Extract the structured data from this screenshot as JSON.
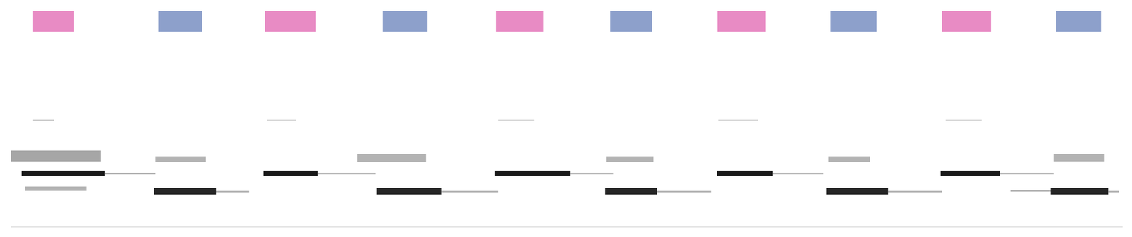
{
  "chart_data": {
    "type": "spectrogram",
    "tick_labels": false,
    "xlim": [
      0,
      1568
    ],
    "ylim": [
      0,
      329
    ],
    "intensity_range": [
      0,
      1
    ],
    "segments": {
      "x_start": [
        45,
        220,
        367,
        530,
        687,
        845,
        994,
        1150,
        1305,
        1463
      ],
      "x_end": [
        102,
        280,
        437,
        592,
        753,
        903,
        1060,
        1214,
        1373,
        1525
      ],
      "y_range": [
        285,
        314
      ],
      "colors": [
        "#e88bc4",
        "#8da0cb",
        "#e88bc4",
        "#8da0cb",
        "#e88bc4",
        "#8da0cb",
        "#e88bc4",
        "#8da0cb",
        "#e88bc4",
        "#8da0cb"
      ]
    },
    "notes": {
      "x_start": [
        15,
        30,
        145,
        15,
        35,
        45,
        213,
        300,
        215,
        365,
        440,
        370,
        522,
        612,
        495,
        685,
        790,
        690,
        838,
        910,
        840,
        993,
        1070,
        995,
        1145,
        1230,
        1148,
        1303,
        1385,
        1310,
        1400,
        1455,
        1535,
        1460
      ],
      "x_end": [
        1555,
        145,
        215,
        140,
        120,
        75,
        300,
        345,
        285,
        440,
        520,
        410,
        612,
        690,
        590,
        790,
        850,
        740,
        910,
        985,
        905,
        1070,
        1140,
        1050,
        1230,
        1305,
        1205,
        1385,
        1460,
        1360,
        1460,
        1535,
        1550,
        1530
      ],
      "y_low": [
        13,
        85,
        87,
        105,
        64,
        161,
        59,
        62,
        104,
        85,
        87,
        161,
        59,
        62,
        104,
        85,
        87,
        161,
        59,
        62,
        104,
        85,
        87,
        161,
        59,
        62,
        104,
        85,
        87,
        161,
        63,
        59,
        62,
        105
      ],
      "y_high": [
        15,
        92,
        89,
        120,
        70,
        163,
        68,
        64,
        112,
        92,
        89,
        163,
        68,
        64,
        115,
        92,
        89,
        163,
        68,
        64,
        112,
        92,
        89,
        163,
        68,
        64,
        112,
        92,
        89,
        163,
        65,
        68,
        64,
        115
      ],
      "intensity": [
        0.1,
        0.9,
        0.4,
        0.35,
        0.3,
        0.2,
        0.85,
        0.3,
        0.3,
        0.9,
        0.35,
        0.15,
        0.85,
        0.3,
        0.3,
        0.9,
        0.35,
        0.15,
        0.85,
        0.3,
        0.3,
        0.9,
        0.35,
        0.15,
        0.85,
        0.3,
        0.3,
        0.9,
        0.35,
        0.15,
        0.3,
        0.85,
        0.3,
        0.3
      ]
    }
  }
}
